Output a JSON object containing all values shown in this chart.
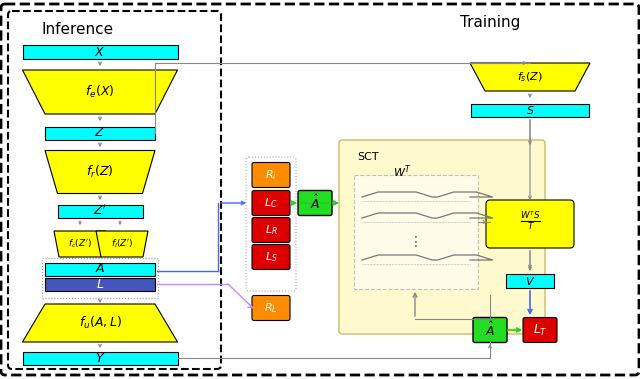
{
  "inference_title": "Inference",
  "training_title": "Training",
  "cyan_color": "#00FFFF",
  "yellow_color": "#FFFF00",
  "orange_color": "#FF8C00",
  "red_color": "#DD0000",
  "green_color": "#00CC00",
  "blue_color": "#4466FF",
  "purple_color": "#CC88FF",
  "sct_bg_color": "#FFFACD",
  "gray_color": "#888888",
  "background": "#FFFFFF"
}
